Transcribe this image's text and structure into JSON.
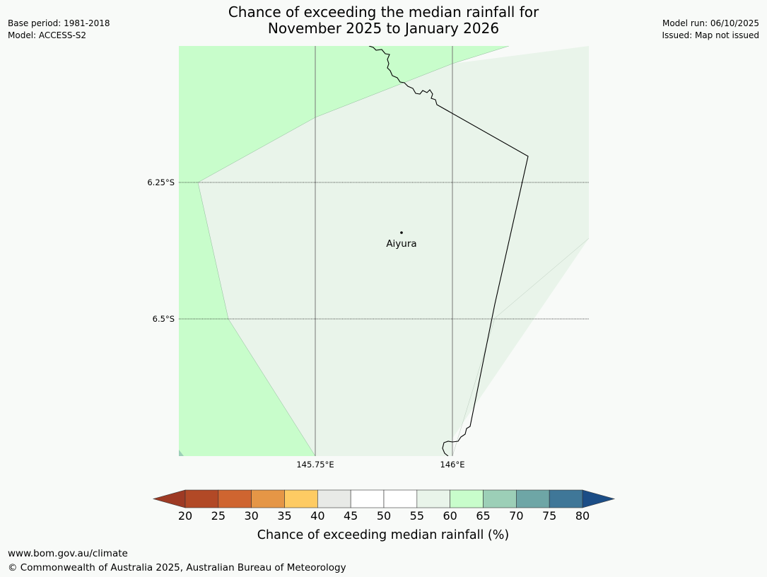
{
  "title": {
    "line1": "Chance of exceeding the median rainfall for",
    "line2": "November 2025 to January 2026"
  },
  "info_left": {
    "base_period": "Base period: 1981-2018",
    "model": "Model: ACCESS-S2"
  },
  "info_right": {
    "model_run": "Model run: 06/10/2025",
    "issued": "Issued: Map not issued"
  },
  "map": {
    "longitude_ticks": [
      "145.75°E",
      "146°E"
    ],
    "latitude_ticks": [
      "6.25°S",
      "6.5°S"
    ],
    "place": {
      "name": "Aiyura"
    },
    "colors": {
      "60_65": "#c8fdcb",
      "55_60": "#e9f4ea",
      "50_55": "#f8faf8",
      "65_70": "#9ccfb7"
    }
  },
  "colorbar": {
    "title": "Chance of exceeding median rainfall (%)",
    "tick_labels": [
      "20",
      "25",
      "30",
      "35",
      "40",
      "45",
      "50",
      "55",
      "60",
      "65",
      "70",
      "75",
      "80"
    ],
    "colors": [
      "#b24926",
      "#cf6530",
      "#e59646",
      "#fecb63",
      "#e8eae7",
      "#ffffff",
      "#ffffff",
      "#e9f4ea",
      "#c8fdcb",
      "#9ccfb7",
      "#6ea6a6",
      "#3f7798"
    ],
    "low_extend_color": "#9e3a24",
    "high_extend_color": "#1b4d86"
  },
  "footer": {
    "url": "www.bom.gov.au/climate",
    "copyright": "© Commonwealth of Australia 2025, Australian Bureau of Meteorology"
  }
}
